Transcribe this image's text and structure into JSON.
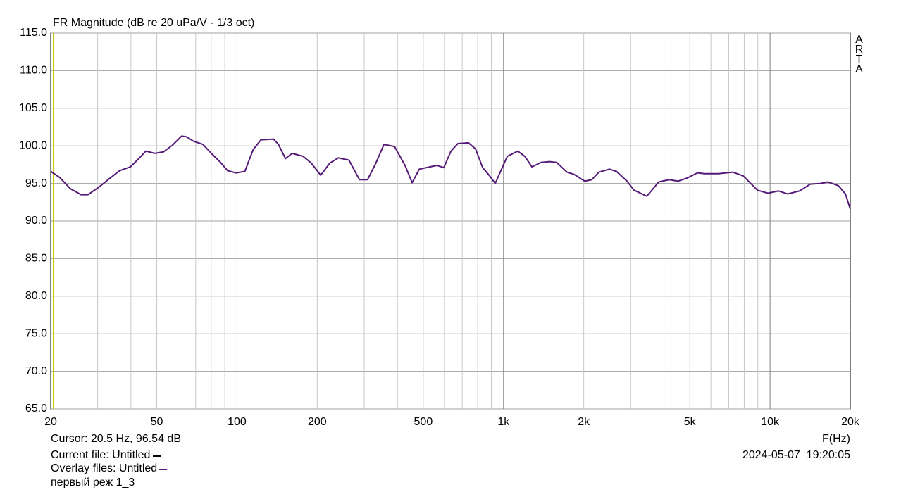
{
  "chart_data": {
    "type": "line",
    "title": "FR Magnitude (dB re 20 uPa/V - 1/3 oct)",
    "watermark": "ARTA",
    "x_label": "F(Hz)",
    "log_x": true,
    "grid": true,
    "xlim": [
      20,
      20000
    ],
    "ylim": [
      65,
      115
    ],
    "xticks": [
      20,
      50,
      100,
      200,
      500,
      {
        "value": 1000,
        "label": "1k"
      },
      {
        "value": 2000,
        "label": "2k"
      },
      {
        "value": 5000,
        "label": "5k"
      },
      {
        "value": 10000,
        "label": "10k"
      },
      {
        "value": 20000,
        "label": "20k"
      }
    ],
    "minor_xticks": [
      30,
      40,
      60,
      70,
      80,
      90,
      300,
      400,
      600,
      700,
      800,
      900,
      3000,
      4000,
      6000,
      7000,
      8000,
      9000
    ],
    "yticks": [
      {
        "value": 65,
        "label": "65.0"
      },
      {
        "value": 70,
        "label": "70.0"
      },
      {
        "value": 75,
        "label": "75.0"
      },
      {
        "value": 80,
        "label": "80.0"
      },
      {
        "value": 85,
        "label": "85.0"
      },
      {
        "value": 90,
        "label": "90.0"
      },
      {
        "value": 95,
        "label": "95.0"
      },
      {
        "value": 100,
        "label": "100.0"
      },
      {
        "value": 105,
        "label": "105.0"
      },
      {
        "value": 110,
        "label": "110.0"
      },
      {
        "value": 115,
        "label": "115.0"
      }
    ],
    "cursor": {
      "x": 20.5,
      "y": 96.54,
      "label": "Cursor: 20.5 Hz, 96.54 dB",
      "color": "#c8c800"
    },
    "current_file": "Current file: Untitled",
    "overlay_files": "Overlay files: Untitled",
    "overlay_name": "первый реж 1_3",
    "timestamp": "2024-05-07  19:20:05",
    "x": [
      20,
      21.6,
      23.7,
      26,
      27.6,
      30.3,
      33.1,
      36.3,
      39.8,
      42.8,
      45.5,
      49.2,
      53,
      57.3,
      62,
      64.7,
      68.8,
      74.5,
      80.1,
      86.7,
      92.2,
      99.2,
      107,
      115,
      123,
      137,
      143,
      152,
      161,
      177,
      190,
      206,
      223,
      240,
      263,
      288,
      309,
      331,
      356,
      390,
      427,
      454,
      483,
      529,
      562,
      597,
      635,
      674,
      739,
      785,
      835,
      887,
      931,
      972,
      1033,
      1131,
      1202,
      1278,
      1383,
      1487,
      1581,
      1732,
      1841,
      2017,
      2144,
      2280,
      2496,
      2653,
      2906,
      3089,
      3447,
      3823,
      4188,
      4506,
      4876,
      5342,
      5678,
      6412,
      7244,
      7936,
      8964,
      9821,
      10758,
      11642,
      12910,
      14146,
      15496,
      16470,
      18044,
      19180,
      20000
    ],
    "series": [
      {
        "color": "#551a77",
        "values": [
          96.6,
          95.8,
          94.3,
          93.5,
          93.5,
          94.5,
          95.6,
          96.7,
          97.2,
          98.3,
          99.3,
          99.0,
          99.2,
          100.1,
          101.3,
          101.2,
          100.6,
          100.2,
          99.0,
          97.8,
          96.7,
          96.4,
          96.6,
          99.5,
          100.8,
          100.9,
          100.2,
          98.3,
          99.0,
          98.6,
          97.7,
          96.1,
          97.7,
          98.4,
          98.1,
          95.5,
          95.5,
          97.6,
          100.2,
          99.9,
          97.4,
          95.1,
          96.9,
          97.2,
          97.4,
          97.1,
          99.3,
          100.3,
          100.4,
          99.6,
          97.1,
          96.0,
          95.0,
          96.5,
          98.6,
          99.3,
          98.6,
          97.2,
          97.8,
          97.9,
          97.8,
          96.5,
          96.2,
          95.3,
          95.5,
          96.5,
          96.9,
          96.6,
          95.3,
          94.1,
          93.3,
          95.2,
          95.5,
          95.3,
          95.7,
          96.4,
          96.3,
          96.3,
          96.5,
          96.0,
          94.1,
          93.7,
          94.0,
          93.6,
          94.0,
          94.9,
          95.0,
          95.2,
          94.7,
          93.6,
          91.6
        ]
      }
    ]
  }
}
